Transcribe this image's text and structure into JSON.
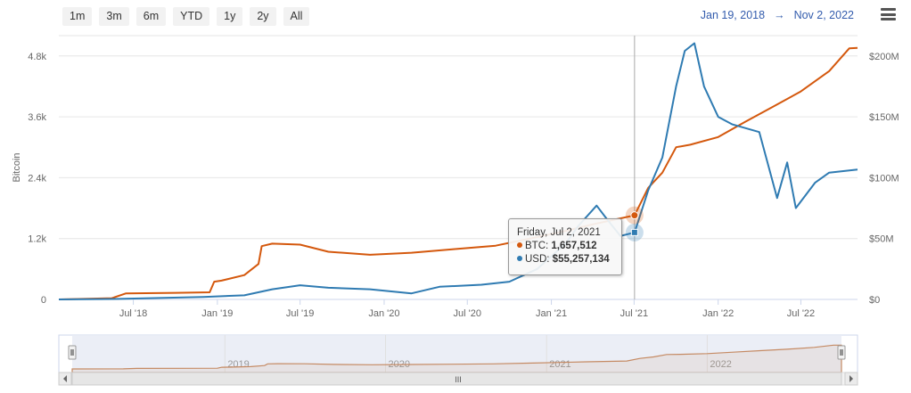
{
  "range_buttons": [
    "1m",
    "3m",
    "6m",
    "YTD",
    "1y",
    "2y",
    "All"
  ],
  "date_range": {
    "from": "Jan 19, 2018",
    "arrow": "→",
    "to": "Nov 2, 2022"
  },
  "menu_icon": "hamburger-menu-icon",
  "tooltip": {
    "date": "Friday, Jul 2, 2021",
    "btc_label": "BTC: ",
    "btc_value": "1,657,512",
    "usd_label": "USD: ",
    "usd_value": "$55,257,134"
  },
  "navigator": {
    "year_labels": [
      "2019",
      "2020",
      "2021",
      "2022"
    ],
    "scroll_grip": "III"
  },
  "colors": {
    "btc": "#d4580d",
    "usd": "#2f7bb2",
    "grid": "#e6e6e6",
    "navigator_fill": "#e9ecf5",
    "navigator_line": "#c58a63"
  },
  "chart_data": {
    "type": "line",
    "x_type": "date",
    "x_range": [
      "2018-01-19",
      "2022-11-02"
    ],
    "x_ticks": [
      "Jul '18",
      "Jan '19",
      "Jul '19",
      "Jan '20",
      "Jul '20",
      "Jan '21",
      "Jul '21",
      "Jan '22",
      "Jul '22"
    ],
    "y_left": {
      "label": "Bitcoin",
      "ticks": [
        "0",
        "1.2k",
        "2.4k",
        "3.6k",
        "4.8k"
      ],
      "range": [
        0,
        5200
      ]
    },
    "y_right": {
      "ticks": [
        "$0",
        "$50M",
        "$100M",
        "$150M",
        "$200M"
      ],
      "range": [
        0,
        216.7
      ]
    },
    "grid": true,
    "crosshair_date": "2021-07-02",
    "series": [
      {
        "name": "BTC",
        "axis": "left",
        "points": [
          [
            "2018-01-19",
            0
          ],
          [
            "2018-05-15",
            25
          ],
          [
            "2018-06-15",
            120
          ],
          [
            "2018-10-01",
            130
          ],
          [
            "2018-12-15",
            140
          ],
          [
            "2018-12-25",
            350
          ],
          [
            "2019-01-10",
            370
          ],
          [
            "2019-03-01",
            480
          ],
          [
            "2019-04-01",
            700
          ],
          [
            "2019-04-08",
            1050
          ],
          [
            "2019-05-01",
            1100
          ],
          [
            "2019-07-01",
            1080
          ],
          [
            "2019-09-01",
            940
          ],
          [
            "2019-12-01",
            880
          ],
          [
            "2020-03-01",
            920
          ],
          [
            "2020-06-01",
            990
          ],
          [
            "2020-09-01",
            1060
          ],
          [
            "2020-12-01",
            1230
          ],
          [
            "2021-02-01",
            1350
          ],
          [
            "2021-04-01",
            1480
          ],
          [
            "2021-07-02",
            1658
          ],
          [
            "2021-08-01",
            2200
          ],
          [
            "2021-09-01",
            2500
          ],
          [
            "2021-10-01",
            3000
          ],
          [
            "2021-11-01",
            3050
          ],
          [
            "2022-01-01",
            3200
          ],
          [
            "2022-03-01",
            3500
          ],
          [
            "2022-05-01",
            3800
          ],
          [
            "2022-07-01",
            4100
          ],
          [
            "2022-09-01",
            4500
          ],
          [
            "2022-10-15",
            4950
          ],
          [
            "2022-11-02",
            4960
          ]
        ]
      },
      {
        "name": "USD",
        "axis": "left",
        "points": [
          [
            "2018-01-19",
            0
          ],
          [
            "2018-06-01",
            10
          ],
          [
            "2018-12-01",
            50
          ],
          [
            "2019-03-01",
            80
          ],
          [
            "2019-05-01",
            200
          ],
          [
            "2019-07-01",
            280
          ],
          [
            "2019-09-01",
            230
          ],
          [
            "2019-12-01",
            200
          ],
          [
            "2020-03-01",
            120
          ],
          [
            "2020-05-01",
            250
          ],
          [
            "2020-08-01",
            290
          ],
          [
            "2020-10-01",
            350
          ],
          [
            "2020-12-01",
            600
          ],
          [
            "2021-02-01",
            1100
          ],
          [
            "2021-03-01",
            1450
          ],
          [
            "2021-04-10",
            1850
          ],
          [
            "2021-05-01",
            1600
          ],
          [
            "2021-06-01",
            1250
          ],
          [
            "2021-07-02",
            1320
          ],
          [
            "2021-08-01",
            2150
          ],
          [
            "2021-09-01",
            2800
          ],
          [
            "2021-10-01",
            4200
          ],
          [
            "2021-10-20",
            4900
          ],
          [
            "2021-11-10",
            5050
          ],
          [
            "2021-12-01",
            4200
          ],
          [
            "2022-01-01",
            3600
          ],
          [
            "2022-02-01",
            3450
          ],
          [
            "2022-04-01",
            3300
          ],
          [
            "2022-05-10",
            2000
          ],
          [
            "2022-06-01",
            2700
          ],
          [
            "2022-06-20",
            1800
          ],
          [
            "2022-08-01",
            2300
          ],
          [
            "2022-09-01",
            2500
          ],
          [
            "2022-11-02",
            2560
          ]
        ]
      }
    ]
  }
}
